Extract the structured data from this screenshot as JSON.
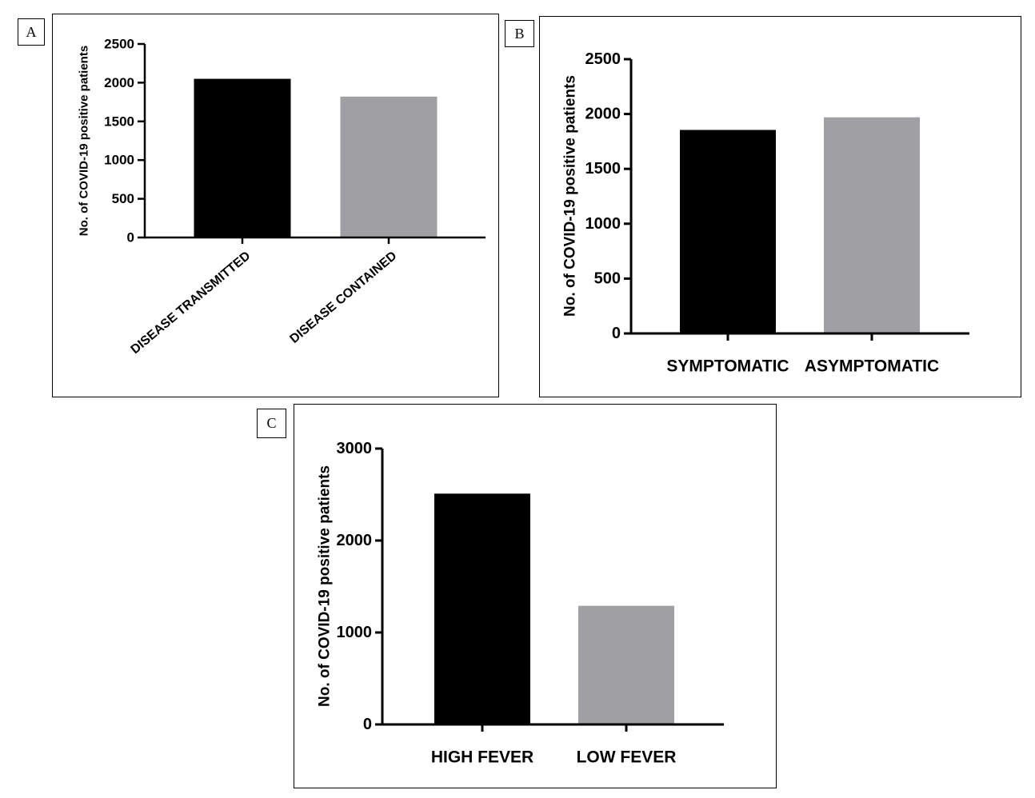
{
  "panels": [
    {
      "letter": "A"
    },
    {
      "letter": "B"
    },
    {
      "letter": "C"
    }
  ],
  "chart_data": [
    {
      "panel": "A",
      "type": "bar",
      "categories": [
        "DISEASE TRANSMITTED",
        "DISEASE CONTAINED"
      ],
      "values": [
        2050,
        1820
      ],
      "colors": [
        "#000000",
        "#a0a0a4"
      ],
      "ylabel": "No. of COVID-19 positive patients",
      "xlabel": "",
      "ylim": [
        0,
        2500
      ],
      "yticks": [
        0,
        500,
        1000,
        1500,
        2000,
        2500
      ],
      "ytick_labels": [
        "0",
        "500",
        "1000",
        "1500",
        "2000",
        "2500"
      ],
      "grid": false,
      "legend": "none"
    },
    {
      "panel": "B",
      "type": "bar",
      "categories": [
        "SYMPTOMATIC",
        "ASYMPTOMATIC"
      ],
      "values": [
        1855,
        1970
      ],
      "colors": [
        "#000000",
        "#a0a0a4"
      ],
      "ylabel": "No. of COVID-19 positive patients",
      "xlabel": "",
      "ylim": [
        0,
        2500
      ],
      "yticks": [
        0,
        500,
        1000,
        1500,
        2000,
        2500
      ],
      "ytick_labels": [
        "0",
        "500",
        "1000",
        "1500",
        "2000",
        "2500"
      ],
      "grid": false,
      "legend": "none"
    },
    {
      "panel": "C",
      "type": "bar",
      "categories": [
        "HIGH FEVER",
        "LOW FEVER"
      ],
      "values": [
        2510,
        1290
      ],
      "colors": [
        "#000000",
        "#a0a0a4"
      ],
      "ylabel": "No. of COVID-19 positive patients",
      "xlabel": "",
      "ylim": [
        0,
        3000
      ],
      "yticks": [
        0,
        1000,
        2000,
        3000
      ],
      "ytick_labels": [
        "0",
        "1000",
        "2000",
        "3000"
      ],
      "grid": false,
      "legend": "none"
    }
  ]
}
